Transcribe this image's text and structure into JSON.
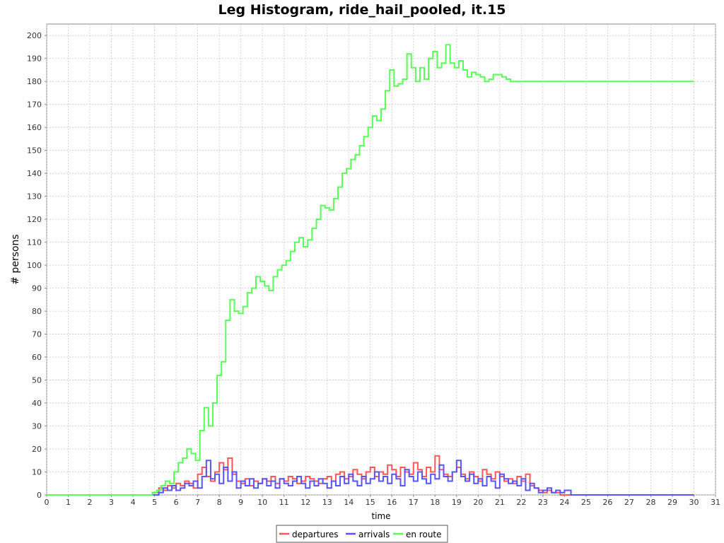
{
  "chart_data": {
    "type": "line",
    "title": "Leg Histogram, ride_hail_pooled, it.15",
    "xlabel": "time",
    "ylabel": "# persons",
    "xlim": [
      0,
      31
    ],
    "ylim": [
      0,
      205
    ],
    "x_ticks": [
      0,
      1,
      2,
      3,
      4,
      5,
      6,
      7,
      8,
      9,
      10,
      11,
      12,
      13,
      14,
      15,
      16,
      17,
      18,
      19,
      20,
      21,
      22,
      23,
      24,
      25,
      26,
      27,
      28,
      29,
      30,
      31
    ],
    "y_ticks": [
      0,
      10,
      20,
      30,
      40,
      50,
      60,
      70,
      80,
      90,
      100,
      110,
      120,
      130,
      140,
      150,
      160,
      170,
      180,
      190,
      200
    ],
    "grid": true,
    "step": true,
    "legend_position": "bottom",
    "colors": {
      "departures": "#ff5555",
      "arrivals": "#5555ff",
      "en_route": "#55ff55"
    },
    "series": [
      {
        "name": "departures",
        "x": [
          0,
          4.9,
          5.2,
          5.4,
          5.6,
          5.8,
          6.0,
          6.2,
          6.4,
          6.6,
          6.8,
          7.0,
          7.2,
          7.4,
          7.6,
          7.8,
          8.0,
          8.2,
          8.4,
          8.6,
          8.8,
          9.0,
          9.2,
          9.4,
          9.6,
          9.8,
          10.0,
          10.2,
          10.4,
          10.6,
          10.8,
          11.0,
          11.2,
          11.4,
          11.6,
          11.8,
          12.0,
          12.2,
          12.4,
          12.6,
          12.8,
          13.0,
          13.2,
          13.4,
          13.6,
          13.8,
          14.0,
          14.2,
          14.4,
          14.6,
          14.8,
          15.0,
          15.2,
          15.4,
          15.6,
          15.8,
          16.0,
          16.2,
          16.4,
          16.6,
          16.8,
          17.0,
          17.2,
          17.4,
          17.6,
          17.8,
          18.0,
          18.2,
          18.4,
          18.6,
          18.8,
          19.0,
          19.2,
          19.4,
          19.6,
          19.8,
          20.0,
          20.2,
          20.4,
          20.6,
          20.8,
          21.0,
          21.2,
          21.4,
          21.6,
          21.8,
          22.0,
          22.2,
          22.4,
          22.6,
          22.8,
          23.0,
          23.2,
          23.4,
          23.6,
          23.8,
          24.0,
          30.0
        ],
        "y": [
          0,
          1,
          3,
          2,
          4,
          3,
          5,
          4,
          6,
          5,
          3,
          9,
          12,
          8,
          6,
          10,
          14,
          11,
          16,
          9,
          6,
          5,
          7,
          4,
          6,
          5,
          7,
          6,
          8,
          5,
          7,
          6,
          8,
          7,
          5,
          6,
          8,
          7,
          6,
          5,
          7,
          8,
          6,
          9,
          10,
          7,
          8,
          11,
          9,
          7,
          10,
          12,
          8,
          10,
          9,
          13,
          11,
          8,
          12,
          10,
          9,
          14,
          11,
          8,
          12,
          10,
          17,
          11,
          9,
          8,
          10,
          12,
          9,
          7,
          10,
          8,
          6,
          11,
          9,
          7,
          10,
          8,
          6,
          7,
          5,
          8,
          6,
          9,
          4,
          3,
          2,
          1,
          2,
          1,
          1,
          0,
          0,
          0
        ],
        "line_color": "#ff5555"
      },
      {
        "name": "arrivals",
        "x": [
          0,
          4.9,
          5.2,
          5.4,
          5.6,
          5.8,
          6.0,
          6.2,
          6.4,
          6.6,
          6.8,
          7.0,
          7.2,
          7.4,
          7.6,
          7.8,
          8.0,
          8.2,
          8.4,
          8.6,
          8.8,
          9.0,
          9.2,
          9.4,
          9.6,
          9.8,
          10.0,
          10.2,
          10.4,
          10.6,
          10.8,
          11.0,
          11.2,
          11.4,
          11.6,
          11.8,
          12.0,
          12.2,
          12.4,
          12.6,
          12.8,
          13.0,
          13.2,
          13.4,
          13.6,
          13.8,
          14.0,
          14.2,
          14.4,
          14.6,
          14.8,
          15.0,
          15.2,
          15.4,
          15.6,
          15.8,
          16.0,
          16.2,
          16.4,
          16.6,
          16.8,
          17.0,
          17.2,
          17.4,
          17.6,
          17.8,
          18.0,
          18.2,
          18.4,
          18.6,
          18.8,
          19.0,
          19.2,
          19.4,
          19.6,
          19.8,
          20.0,
          20.2,
          20.4,
          20.6,
          20.8,
          21.0,
          21.2,
          21.4,
          21.6,
          21.8,
          22.0,
          22.2,
          22.4,
          22.6,
          22.8,
          23.0,
          23.2,
          23.4,
          23.6,
          23.8,
          24.0,
          24.3,
          30.0
        ],
        "y": [
          0,
          0,
          1,
          3,
          2,
          4,
          2,
          3,
          5,
          4,
          6,
          3,
          8,
          15,
          7,
          9,
          5,
          12,
          6,
          10,
          3,
          6,
          4,
          7,
          3,
          5,
          7,
          4,
          6,
          3,
          7,
          5,
          4,
          6,
          8,
          5,
          3,
          6,
          4,
          7,
          5,
          3,
          6,
          4,
          8,
          5,
          9,
          6,
          4,
          8,
          5,
          7,
          10,
          6,
          8,
          5,
          9,
          7,
          4,
          11,
          8,
          6,
          10,
          7,
          5,
          9,
          7,
          13,
          8,
          6,
          10,
          15,
          8,
          6,
          9,
          5,
          7,
          4,
          8,
          6,
          3,
          9,
          7,
          5,
          6,
          4,
          7,
          2,
          5,
          3,
          1,
          2,
          3,
          1,
          2,
          1,
          2,
          0,
          0
        ],
        "line_color": "#5555ff"
      },
      {
        "name": "en route",
        "x": [
          0,
          4.9,
          5.1,
          5.3,
          5.5,
          5.7,
          5.9,
          6.1,
          6.3,
          6.5,
          6.7,
          6.9,
          7.1,
          7.3,
          7.5,
          7.7,
          7.9,
          8.1,
          8.3,
          8.5,
          8.7,
          8.9,
          9.1,
          9.3,
          9.5,
          9.7,
          9.9,
          10.1,
          10.3,
          10.5,
          10.7,
          10.9,
          11.1,
          11.3,
          11.5,
          11.7,
          11.9,
          12.1,
          12.3,
          12.5,
          12.7,
          12.9,
          13.1,
          13.3,
          13.5,
          13.7,
          13.9,
          14.1,
          14.3,
          14.5,
          14.7,
          14.9,
          15.1,
          15.3,
          15.5,
          15.7,
          15.9,
          16.1,
          16.3,
          16.5,
          16.7,
          16.9,
          17.1,
          17.3,
          17.5,
          17.7,
          17.9,
          18.1,
          18.3,
          18.5,
          18.7,
          18.9,
          19.1,
          19.3,
          19.5,
          19.7,
          19.9,
          20.1,
          20.3,
          20.5,
          20.7,
          20.9,
          21.1,
          21.3,
          21.5,
          21.7,
          21.9,
          22.1,
          22.3,
          22.5,
          22.7,
          22.9,
          23.1,
          23.3,
          23.5,
          23.7,
          23.9,
          24.1,
          24.3,
          30.0
        ],
        "y": [
          0,
          1,
          2,
          4,
          6,
          5,
          10,
          14,
          16,
          20,
          18,
          15,
          28,
          38,
          30,
          40,
          52,
          58,
          76,
          85,
          80,
          79,
          82,
          88,
          90,
          95,
          93,
          91,
          89,
          95,
          98,
          100,
          102,
          106,
          110,
          112,
          108,
          111,
          116,
          120,
          126,
          125,
          124,
          129,
          134,
          140,
          142,
          146,
          148,
          152,
          156,
          160,
          165,
          163,
          168,
          176,
          185,
          178,
          179,
          181,
          192,
          186,
          180,
          186,
          181,
          190,
          193,
          186,
          188,
          196,
          188,
          186,
          189,
          185,
          182,
          184,
          183,
          182,
          180,
          181,
          183,
          183,
          182,
          181,
          180,
          180,
          180,
          180,
          180,
          180,
          180,
          180,
          180,
          180,
          180,
          180,
          180,
          180,
          180,
          180
        ],
        "line_color": "#55ff55"
      }
    ]
  },
  "legend": {
    "items": [
      {
        "label": "departures",
        "color": "#ff5555"
      },
      {
        "label": "arrivals",
        "color": "#5555ff"
      },
      {
        "label": "en route",
        "color": "#55ff55"
      }
    ]
  }
}
